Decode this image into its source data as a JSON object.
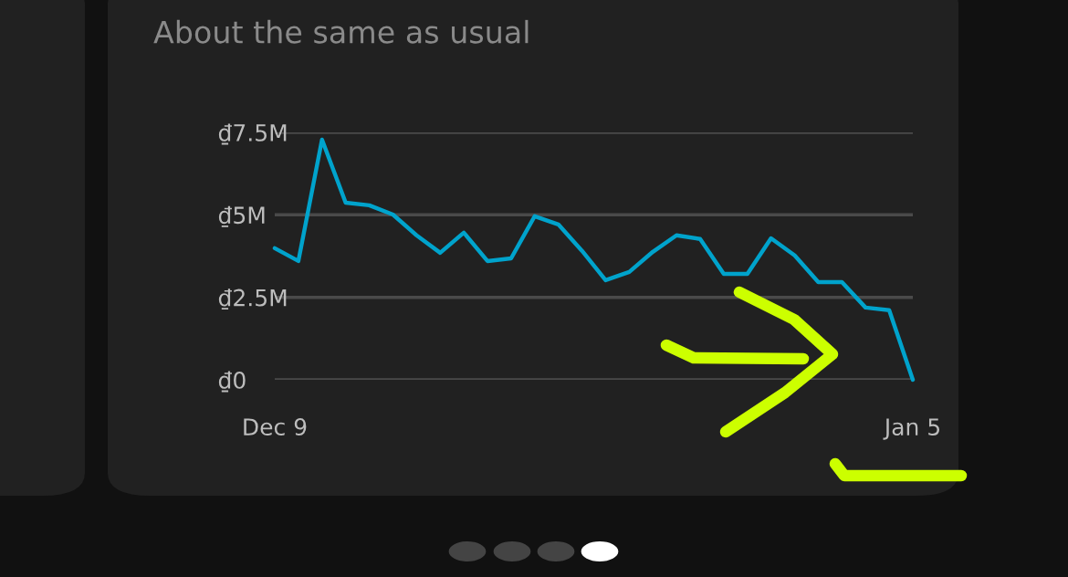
{
  "chart_data": {
    "type": "line",
    "title": "About the same as usual",
    "categories": [
      "Dec 9",
      null,
      null,
      null,
      null,
      null,
      null,
      null,
      null,
      null,
      null,
      null,
      null,
      null,
      null,
      null,
      null,
      null,
      null,
      null,
      null,
      null,
      null,
      null,
      null,
      null,
      null,
      "Jan 5"
    ],
    "series": [
      {
        "color": "#00a3cc",
        "values": [
          3.99,
          3.6,
          7.28,
          5.37,
          5.29,
          5.01,
          4.38,
          3.85,
          4.46,
          3.6,
          3.68,
          4.96,
          4.71,
          3.91,
          3.02,
          3.27,
          3.88,
          4.38,
          4.27,
          3.21,
          3.21,
          4.29,
          3.77,
          2.96,
          2.96,
          2.19,
          2.11,
          0
        ]
      }
    ],
    "ylim": [
      0,
      7.5
    ],
    "yticks": [
      {
        "value": 0,
        "label": "₫0"
      },
      {
        "value": 2.5,
        "label": "₫2.5M"
      },
      {
        "value": 5,
        "label": "₫5M"
      },
      {
        "value": 7.5,
        "label": "₫7.5M"
      }
    ],
    "grid": "y",
    "marker": "none",
    "line_style": "solid"
  }
}
